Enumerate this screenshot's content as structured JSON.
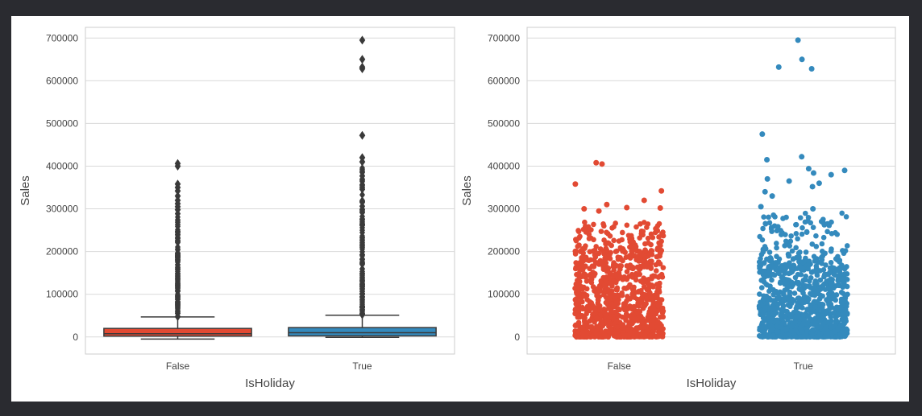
{
  "colors": {
    "false_series": "#e24a33",
    "true_series": "#348abd",
    "box_line": "#3a3a3a",
    "grid": "#d9d9d9",
    "frame": "#cccccc",
    "text": "#444444"
  },
  "chart_data": [
    {
      "type": "boxplot",
      "xlabel": "IsHoliday",
      "ylabel": "Sales",
      "ylim": [
        -40000,
        725000
      ],
      "yticks": [
        0,
        100000,
        200000,
        300000,
        400000,
        500000,
        600000,
        700000
      ],
      "categories": [
        "False",
        "True"
      ],
      "grid": true,
      "boxes": [
        {
          "category": "False",
          "whisker_low": -5000,
          "q1": 2000,
          "median": 7500,
          "q3": 20000,
          "whisker_high": 47000,
          "outlier_range": [
            47000,
            290000
          ],
          "outliers": [
            298000,
            305000,
            312000,
            320000,
            330000,
            342000,
            350000,
            358000,
            400000,
            406000
          ]
        },
        {
          "category": "True",
          "whisker_low": -1000,
          "q1": 2500,
          "median": 10000,
          "q3": 22000,
          "whisker_high": 51000,
          "outlier_range": [
            51000,
            400000
          ],
          "outliers": [
            410000,
            420000,
            472000,
            628000,
            632000,
            650000,
            695000
          ]
        }
      ]
    },
    {
      "type": "scatter",
      "subtype": "stripplot",
      "xlabel": "IsHoliday",
      "ylabel": "Sales",
      "ylim": [
        -40000,
        725000
      ],
      "yticks": [
        0,
        100000,
        200000,
        300000,
        400000,
        500000,
        600000,
        700000
      ],
      "categories": [
        "False",
        "True"
      ],
      "grid": true,
      "series": [
        {
          "category": "False",
          "dense_range": [
            0,
            200000
          ],
          "sparse_range": [
            200000,
            270000
          ],
          "points": [
            295000,
            300000,
            302000,
            303000,
            310000,
            320000,
            342000,
            358000,
            405000,
            408000
          ]
        },
        {
          "category": "True",
          "dense_range": [
            0,
            175000
          ],
          "sparse_range": [
            175000,
            290000
          ],
          "points": [
            300000,
            305000,
            330000,
            340000,
            352000,
            360000,
            365000,
            370000,
            380000,
            384000,
            390000,
            394000,
            415000,
            422000,
            475000,
            628000,
            632000,
            650000,
            695000
          ]
        }
      ]
    }
  ]
}
